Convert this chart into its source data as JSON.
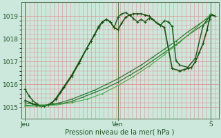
{
  "bg_color": "#cce8dc",
  "plot_bg_color": "#cce8dc",
  "grid_v_color": "#e09090",
  "grid_h_color": "#e09090",
  "ylabel_ticks": [
    1015,
    1016,
    1017,
    1018,
    1019
  ],
  "xtick_labels": [
    "Jeu",
    "Ven",
    "S"
  ],
  "xtick_pos": [
    0,
    48,
    96
  ],
  "xlabel": "Pression niveau de la mer( hPa )",
  "ylim": [
    1014.5,
    1019.6
  ],
  "xlim": [
    -2,
    100
  ],
  "num_vgrid": 48,
  "series": [
    {
      "x": [
        0,
        2,
        4,
        6,
        8,
        10,
        12,
        14,
        16,
        18,
        20,
        24,
        28,
        32,
        36,
        38,
        40,
        42,
        44,
        46,
        48,
        50,
        52,
        54,
        56,
        58,
        60,
        62,
        64,
        66,
        68,
        70,
        72,
        74,
        76,
        78,
        80,
        84,
        88,
        92,
        96,
        98
      ],
      "y": [
        1015.8,
        1015.5,
        1015.3,
        1015.15,
        1015.05,
        1015.05,
        1015.1,
        1015.2,
        1015.4,
        1015.65,
        1015.9,
        1016.4,
        1017.0,
        1017.6,
        1018.2,
        1018.55,
        1018.75,
        1018.85,
        1018.75,
        1018.5,
        1018.95,
        1019.1,
        1019.15,
        1019.05,
        1018.9,
        1018.75,
        1018.85,
        1018.75,
        1018.9,
        1018.85,
        1018.7,
        1018.6,
        1018.8,
        1018.75,
        1018.55,
        1017.05,
        1016.85,
        1016.75,
        1017.15,
        1018.6,
        1019.05,
        1019.0
      ],
      "color": "#1a6020",
      "lw": 1.1,
      "ms": 2.2,
      "marker": "+"
    },
    {
      "x": [
        0,
        6,
        12,
        18,
        24,
        30,
        36,
        42,
        48,
        54,
        60,
        66,
        72,
        78,
        84,
        90,
        96
      ],
      "y": [
        1015.1,
        1015.05,
        1015.1,
        1015.15,
        1015.25,
        1015.45,
        1015.65,
        1015.85,
        1016.1,
        1016.4,
        1016.7,
        1017.05,
        1017.4,
        1017.75,
        1018.15,
        1018.5,
        1018.85
      ],
      "color": "#2d7a35",
      "lw": 0.9,
      "ms": 2.0,
      "marker": "+"
    },
    {
      "x": [
        0,
        6,
        12,
        18,
        24,
        30,
        36,
        42,
        48,
        54,
        60,
        66,
        72,
        78,
        84,
        90,
        96
      ],
      "y": [
        1015.2,
        1015.1,
        1015.1,
        1015.2,
        1015.35,
        1015.55,
        1015.75,
        1016.0,
        1016.25,
        1016.55,
        1016.85,
        1017.2,
        1017.55,
        1017.9,
        1018.3,
        1018.65,
        1019.0
      ],
      "color": "#2d7a35",
      "lw": 0.9,
      "ms": 2.0,
      "marker": "+"
    },
    {
      "x": [
        0,
        4,
        8,
        12,
        16,
        20,
        24,
        28,
        32,
        34,
        36,
        38,
        40,
        42,
        44,
        46,
        48,
        50,
        52,
        54,
        56,
        58,
        60,
        62,
        64,
        66,
        68,
        72,
        76,
        80,
        82,
        84,
        86,
        88,
        90,
        92,
        94,
        96,
        98
      ],
      "y": [
        1015.3,
        1015.15,
        1015.05,
        1015.1,
        1015.35,
        1015.85,
        1016.35,
        1016.95,
        1017.6,
        1017.9,
        1018.2,
        1018.5,
        1018.75,
        1018.85,
        1018.75,
        1018.5,
        1018.4,
        1018.7,
        1018.95,
        1019.05,
        1019.1,
        1019.1,
        1019.1,
        1019.05,
        1019.0,
        1018.85,
        1018.7,
        1018.5,
        1016.7,
        1016.6,
        1016.65,
        1016.7,
        1016.75,
        1017.0,
        1017.4,
        1017.8,
        1018.4,
        1019.1,
        1019.0
      ],
      "color": "#1a5010",
      "lw": 1.2,
      "ms": 2.2,
      "marker": "+"
    },
    {
      "x": [
        0,
        8,
        16,
        24,
        32,
        40,
        48,
        56,
        64,
        72,
        80,
        88,
        96
      ],
      "y": [
        1015.05,
        1015.05,
        1015.1,
        1015.2,
        1015.35,
        1015.6,
        1015.95,
        1016.35,
        1016.8,
        1017.3,
        1017.85,
        1018.45,
        1019.1
      ],
      "color": "#4aaa4a",
      "lw": 0.8,
      "ms": 1.8,
      "marker": "+"
    }
  ]
}
